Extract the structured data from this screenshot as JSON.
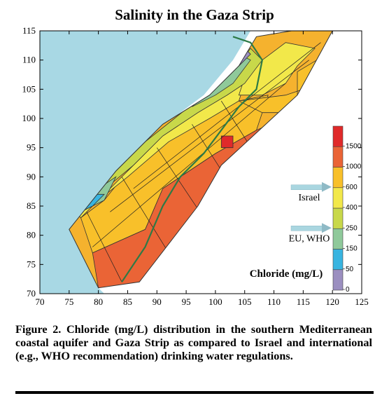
{
  "chart_data": {
    "type": "heatmap",
    "title": "Salinity in the Gaza Strip",
    "xlim": [
      70,
      125
    ],
    "ylim": [
      70,
      115
    ],
    "xticks": [
      70,
      75,
      80,
      85,
      90,
      95,
      100,
      105,
      110,
      115,
      120,
      125
    ],
    "yticks": [
      70,
      75,
      80,
      85,
      90,
      95,
      100,
      105,
      110,
      115
    ],
    "colorbar": {
      "title": "Chloride (mg/L)",
      "levels": [
        "0",
        "50",
        "150",
        "250",
        "400",
        "600",
        "1000",
        "1500"
      ],
      "colors": [
        "#9b8fc0",
        "#38b4e0",
        "#8fc99a",
        "#c8d84a",
        "#f2e84a",
        "#f8c02a",
        "#ea6436",
        "#e02a2a"
      ],
      "references": [
        {
          "label": "Israel",
          "value": "600"
        },
        {
          "label": "EU, WHO",
          "value": "250"
        }
      ]
    },
    "regions": [
      {
        "level": "1000",
        "points": [
          [
            80,
            71
          ],
          [
            79,
            77
          ],
          [
            88,
            81
          ],
          [
            91,
            88
          ],
          [
            100,
            94
          ],
          [
            107,
            98
          ],
          [
            114,
            101
          ],
          [
            108,
            96
          ],
          [
            104,
            87
          ],
          [
            98,
            79
          ],
          [
            92,
            73
          ],
          [
            87,
            70
          ]
        ]
      },
      {
        "level": "1000",
        "points": [
          [
            87,
            94
          ],
          [
            92,
            98
          ],
          [
            88,
            92
          ]
        ]
      },
      {
        "level": "600",
        "points": [
          [
            79,
            77
          ],
          [
            77,
            83
          ],
          [
            81,
            86
          ],
          [
            85,
            91
          ],
          [
            91,
            97
          ],
          [
            98,
            100
          ],
          [
            104,
            103
          ],
          [
            109,
            104
          ],
          [
            107,
            98
          ],
          [
            100,
            94
          ],
          [
            91,
            88
          ],
          [
            88,
            81
          ]
        ]
      },
      {
        "level": "600",
        "points": [
          [
            104,
            103
          ],
          [
            108,
            101
          ],
          [
            114,
            101
          ],
          [
            114,
            108
          ],
          [
            119,
            111
          ],
          [
            121,
            112
          ],
          [
            115,
            105
          ],
          [
            112,
            104
          ]
        ]
      },
      {
        "level": "400",
        "points": [
          [
            77,
            83
          ],
          [
            80,
            86
          ],
          [
            85,
            90
          ],
          [
            92,
            96
          ],
          [
            99,
            100
          ],
          [
            104,
            103
          ],
          [
            105,
            106
          ],
          [
            102,
            104
          ],
          [
            97,
            101
          ],
          [
            91,
            97
          ],
          [
            86,
            92
          ],
          [
            81,
            87
          ],
          [
            76,
            84
          ]
        ]
      },
      {
        "level": "400",
        "points": [
          [
            104,
            104
          ],
          [
            108,
            104
          ],
          [
            112,
            106
          ],
          [
            114,
            109
          ],
          [
            117,
            112
          ],
          [
            112,
            113
          ],
          [
            108,
            110
          ],
          [
            105,
            107
          ]
        ]
      },
      {
        "level": "250",
        "points": [
          [
            77,
            84
          ],
          [
            80,
            87
          ],
          [
            86,
            92
          ],
          [
            91,
            97
          ],
          [
            97,
            101
          ],
          [
            102,
            104
          ],
          [
            105,
            106
          ],
          [
            108,
            110
          ],
          [
            106,
            112
          ],
          [
            103,
            108
          ],
          [
            98,
            104
          ],
          [
            93,
            100
          ],
          [
            88,
            96
          ],
          [
            83,
            91
          ],
          [
            80,
            88
          ]
        ]
      },
      {
        "level": "150",
        "points": [
          [
            77,
            84
          ],
          [
            80,
            88
          ],
          [
            83,
            90
          ],
          [
            81,
            86
          ]
        ]
      },
      {
        "level": "150",
        "points": [
          [
            96,
            102
          ],
          [
            100,
            104
          ],
          [
            103,
            106
          ],
          [
            106,
            110
          ],
          [
            104,
            111
          ],
          [
            102,
            108
          ],
          [
            99,
            105
          ]
        ]
      },
      {
        "level": "50",
        "points": [
          [
            77,
            84
          ],
          [
            79,
            87
          ],
          [
            81,
            87
          ],
          [
            79,
            85
          ]
        ]
      },
      {
        "level": "50",
        "points": [
          [
            101,
            106
          ],
          [
            103,
            108
          ],
          [
            105,
            110
          ],
          [
            103,
            110
          ]
        ]
      },
      {
        "level": "0",
        "points": [
          [
            103,
            110
          ],
          [
            105,
            112
          ],
          [
            106,
            111
          ],
          [
            104,
            109
          ]
        ]
      },
      {
        "level": "1500",
        "points": [
          [
            101,
            95
          ],
          [
            103,
            95
          ],
          [
            103,
            97
          ],
          [
            101,
            97
          ]
        ]
      },
      {
        "level": "1500",
        "points": [
          [
            104,
            91
          ],
          [
            105,
            91
          ],
          [
            105,
            92
          ],
          [
            104,
            92
          ]
        ]
      }
    ]
  }
}
